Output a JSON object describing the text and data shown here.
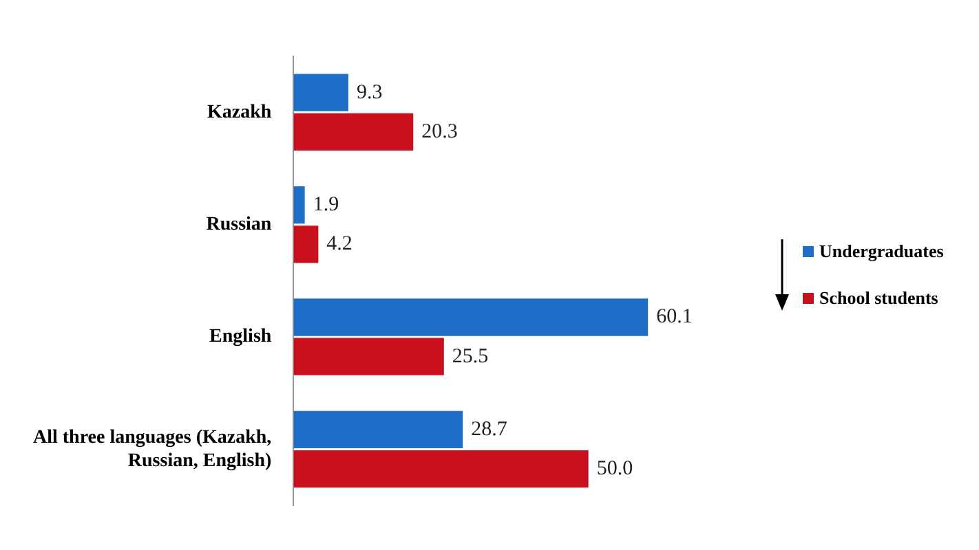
{
  "chart_data": {
    "type": "bar",
    "orientation": "horizontal",
    "categories": [
      "Kazakh",
      "Russian",
      "English",
      "All three languages (Kazakh, Russian, English)"
    ],
    "series": [
      {
        "name": "Undergraduates",
        "color": "#1f6fc8",
        "values": [
          9.3,
          1.9,
          60.1,
          28.7
        ],
        "value_labels": [
          "9.3",
          "1.9",
          "60.1",
          "28.7"
        ]
      },
      {
        "name": "School students",
        "color": "#c8101e",
        "values": [
          20.3,
          4.2,
          25.5,
          50.0
        ],
        "value_labels": [
          "20.3",
          "4.2",
          "25.5",
          "50.0"
        ]
      }
    ],
    "legend": "right",
    "tick_labels": "y"
  }
}
